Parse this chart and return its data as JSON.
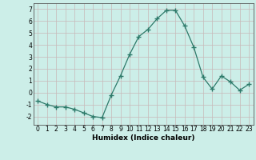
{
  "x": [
    0,
    1,
    2,
    3,
    4,
    5,
    6,
    7,
    8,
    9,
    10,
    11,
    12,
    13,
    14,
    15,
    16,
    17,
    18,
    19,
    20,
    21,
    22,
    23
  ],
  "y": [
    -0.7,
    -1.0,
    -1.2,
    -1.2,
    -1.4,
    -1.7,
    -2.0,
    -2.1,
    -0.2,
    1.4,
    3.2,
    4.7,
    5.3,
    6.2,
    6.9,
    6.9,
    5.6,
    3.8,
    1.3,
    0.3,
    1.4,
    0.9,
    0.2,
    0.7
  ],
  "xlabel": "Humidex (Indice chaleur)",
  "line_color": "#2d7a6a",
  "marker": "P",
  "marker_size": 2.5,
  "bg_color": "#cceee8",
  "grid_color": "#c8b8b8",
  "xlim": [
    -0.5,
    23.5
  ],
  "ylim": [
    -2.7,
    7.5
  ],
  "yticks": [
    -2,
    -1,
    0,
    1,
    2,
    3,
    4,
    5,
    6,
    7
  ],
  "xticks": [
    0,
    1,
    2,
    3,
    4,
    5,
    6,
    7,
    8,
    9,
    10,
    11,
    12,
    13,
    14,
    15,
    16,
    17,
    18,
    19,
    20,
    21,
    22,
    23
  ],
  "tick_fontsize": 5.5,
  "xlabel_fontsize": 6.5
}
